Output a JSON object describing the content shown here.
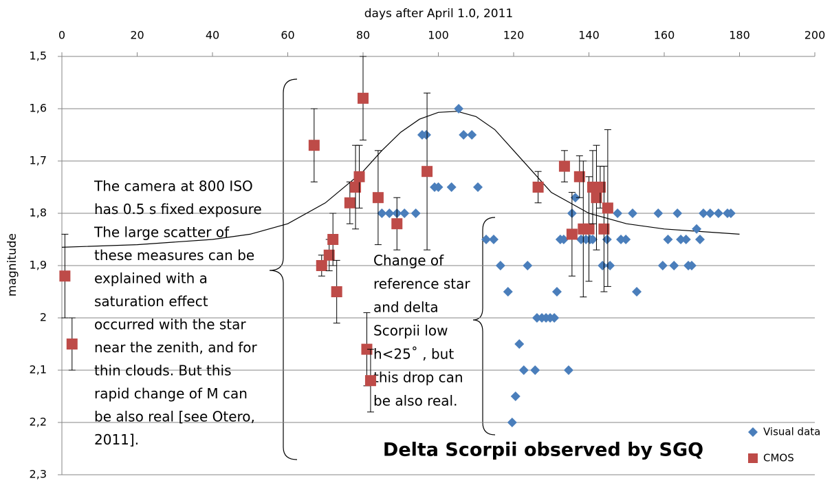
{
  "chart_data": {
    "type": "scatter",
    "title": "Delta Scorpii observed by SGQ",
    "xlabel": "days after April 1.0, 2011",
    "ylabel": "magnitude",
    "xlim": [
      0,
      200
    ],
    "xticks": [
      0,
      20,
      40,
      60,
      80,
      100,
      120,
      140,
      160,
      180,
      200
    ],
    "ylim": [
      1.5,
      2.3
    ],
    "y_inverted": true,
    "yticks": [
      {
        "value": 1.5,
        "label": "1,5"
      },
      {
        "value": 1.6,
        "label": "1,6"
      },
      {
        "value": 1.7,
        "label": "1,7"
      },
      {
        "value": 1.8,
        "label": "1,8"
      },
      {
        "value": 1.9,
        "label": "1,9"
      },
      2,
      {
        "value": 2.1,
        "label": "2,1"
      },
      {
        "value": 2.2,
        "label": "2,2"
      },
      {
        "value": 2.3,
        "label": "2,3"
      }
    ],
    "grid": true,
    "series": [
      {
        "name": "Visual data",
        "color": "#4a7ebb",
        "marker": "diamond",
        "x": [
          85,
          87,
          89,
          91,
          94,
          99,
          100,
          103.5,
          110.5,
          95.7,
          96.8,
          106.7,
          108.9,
          105.4,
          112.7,
          114.7,
          132.4,
          133.3,
          137.9,
          139.2,
          140.3,
          141,
          144.8,
          148.5,
          149.8,
          135.5,
          147.6,
          151.6,
          158.4,
          163.5,
          170.4,
          172.2,
          174.4,
          176.8,
          177.7,
          136.4,
          168.6,
          161,
          164.4,
          165.8,
          169.5,
          116.5,
          123.7,
          143.6,
          145.6,
          159.6,
          162.6,
          166.4,
          167.3,
          118.5,
          131.5,
          152.7,
          126.2,
          127.5,
          128.6,
          129.7,
          130.8,
          121.5,
          122.7,
          125.7,
          134.6,
          120.5,
          119.6
        ],
        "values": [
          1.8,
          1.8,
          1.8,
          1.8,
          1.8,
          1.75,
          1.75,
          1.75,
          1.75,
          1.65,
          1.65,
          1.65,
          1.65,
          1.6,
          1.85,
          1.85,
          1.85,
          1.85,
          1.85,
          1.85,
          1.85,
          1.85,
          1.85,
          1.85,
          1.85,
          1.8,
          1.8,
          1.8,
          1.8,
          1.8,
          1.8,
          1.8,
          1.8,
          1.8,
          1.8,
          1.77,
          1.83,
          1.85,
          1.85,
          1.85,
          1.85,
          1.9,
          1.9,
          1.9,
          1.9,
          1.9,
          1.9,
          1.9,
          1.9,
          1.95,
          1.95,
          1.95,
          2,
          2,
          2,
          2,
          2,
          2.05,
          2.1,
          2.1,
          2.1,
          2.15,
          2.2
        ]
      },
      {
        "name": "CMOS",
        "color": "#be4b48",
        "marker": "square",
        "x": [
          0.8,
          2.7,
          67,
          69,
          71,
          72,
          73,
          76.5,
          78,
          79,
          80,
          84,
          81,
          82,
          89,
          97,
          126.5,
          133.5,
          135.5,
          137.5,
          138.5,
          140,
          141,
          142,
          143,
          144,
          145
        ],
        "values": [
          1.92,
          2.05,
          1.67,
          1.9,
          1.88,
          1.85,
          1.95,
          1.78,
          1.75,
          1.73,
          1.58,
          1.77,
          2.06,
          2.12,
          1.82,
          1.72,
          1.75,
          1.71,
          1.84,
          1.73,
          1.83,
          1.83,
          1.75,
          1.77,
          1.75,
          1.83,
          1.79
        ],
        "errors": [
          0.08,
          0.05,
          0.07,
          0.02,
          0.03,
          0.05,
          0.06,
          0.04,
          0.08,
          0.06,
          0.08,
          0.09,
          0.07,
          0.06,
          0.05,
          0.15,
          0.03,
          0.03,
          0.08,
          0.04,
          0.13,
          0.1,
          0.07,
          0.1,
          0.04,
          0.12,
          0.15
        ]
      }
    ],
    "trend": {
      "color": "#000000",
      "x": [
        0,
        20,
        40,
        50,
        60,
        70,
        80,
        85,
        90,
        95,
        100,
        105,
        110,
        115,
        120,
        125,
        130,
        140,
        150,
        160,
        170,
        180
      ],
      "values": [
        1.865,
        1.86,
        1.85,
        1.84,
        1.82,
        1.78,
        1.72,
        1.68,
        1.645,
        1.62,
        1.607,
        1.605,
        1.615,
        1.64,
        1.68,
        1.72,
        1.76,
        1.8,
        1.82,
        1.83,
        1.835,
        1.84
      ]
    },
    "annotations": [
      {
        "lines": [
          "The camera at 800 ISO",
          "has 0.5 s fixed exposure",
          "The large scatter of",
          "these measures can be",
          "explained with a",
          "saturation effect",
          "occurred with the star",
          "near the zenith, and for",
          "thin clouds. But this",
          "rapid change of M can",
          "be also real [see Otero,",
          "2011]."
        ]
      },
      {
        "lines": [
          "Change of",
          "reference star",
          "and delta",
          "Scorpii low",
          "h<25˚ , but",
          "this drop can",
          "be also real."
        ]
      }
    ]
  }
}
